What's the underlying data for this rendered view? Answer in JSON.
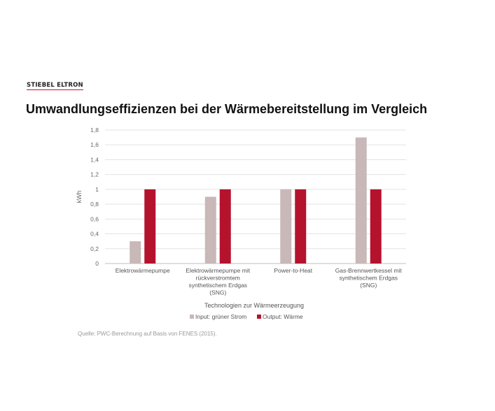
{
  "brand": {
    "logo_text": "STIEBEL ELTRON",
    "accent_color": "#c8102e"
  },
  "page": {
    "title": "Umwandlungseffizienzen bei der Wärmebereitstellung im Vergleich",
    "source": "Quelle: PWC-Berechnung auf Basis von FENES (2015)."
  },
  "chart_data": {
    "type": "bar",
    "categories": [
      [
        "Elektrowärmepumpe"
      ],
      [
        "Elektrowärmepumpe mit",
        "rückverstromtem",
        "synthetischem Erdgas",
        "(SNG)"
      ],
      [
        "Power-to-Heat"
      ],
      [
        "Gas-Brennwertkessel mit",
        "synthetischem Erdgas",
        "(SNG)"
      ]
    ],
    "series": [
      {
        "name": "Input: grüner Strom",
        "color": "#c9b8b8",
        "values": [
          0.3,
          0.9,
          1.0,
          1.7
        ]
      },
      {
        "name": "Output: Wärme",
        "color": "#b5122e",
        "values": [
          1.0,
          1.0,
          1.0,
          1.0
        ]
      }
    ],
    "xlabel": "Technologien zur Wärmeerzeugung",
    "ylabel": "kWh",
    "ylim": [
      0,
      1.8
    ],
    "yticks": [
      "0",
      "0,2",
      "0,4",
      "0,6",
      "0,8",
      "1",
      "1,2",
      "1,4",
      "1,6",
      "1,8"
    ],
    "grid": true,
    "legend": "bottom-center"
  }
}
